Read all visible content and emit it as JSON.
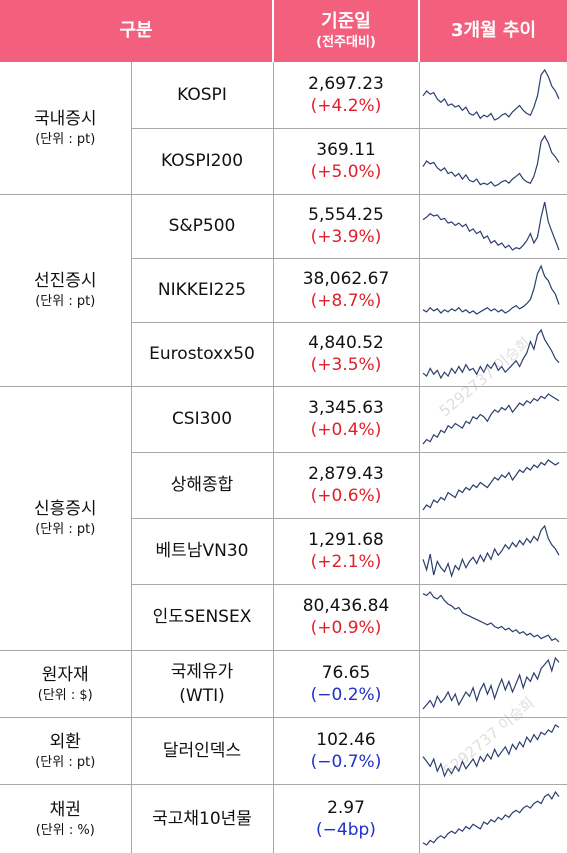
{
  "header": {
    "category": "구분",
    "base_main": "기준일",
    "base_sub": "(전주대비)",
    "trend": "3개월 추이"
  },
  "groups": [
    {
      "name": "국내증시",
      "unit": "(단위 : pt)",
      "rows": [
        {
          "item": "KOSPI",
          "value": "2,697.23",
          "change": "(+4.2%)",
          "dir": "up",
          "spark": [
            42,
            45,
            43,
            44,
            40,
            38,
            40,
            36,
            37,
            35,
            36,
            33,
            35,
            31,
            30,
            32,
            28,
            30,
            29,
            31,
            27,
            28,
            30,
            31,
            29,
            32,
            34,
            36,
            33,
            31,
            30,
            35,
            42,
            55,
            58,
            54,
            48,
            45,
            40
          ]
        },
        {
          "item": "KOSPI200",
          "value": "369.11",
          "change": "(+5.0%)",
          "dir": "up",
          "spark": [
            40,
            44,
            42,
            43,
            39,
            37,
            39,
            35,
            36,
            33,
            35,
            31,
            34,
            30,
            29,
            31,
            27,
            28,
            27,
            29,
            26,
            27,
            29,
            30,
            28,
            31,
            33,
            35,
            31,
            29,
            28,
            33,
            42,
            58,
            62,
            57,
            50,
            47,
            43
          ]
        }
      ]
    },
    {
      "name": "선진증시",
      "unit": "(단위 : pt)",
      "rows": [
        {
          "item": "S&P500",
          "value": "5,554.25",
          "change": "(+3.9%)",
          "dir": "up",
          "spark": [
            40,
            42,
            45,
            43,
            44,
            40,
            41,
            37,
            38,
            35,
            37,
            34,
            36,
            30,
            32,
            28,
            30,
            24,
            26,
            20,
            22,
            18,
            20,
            16,
            18,
            14,
            16,
            15,
            18,
            22,
            28,
            20,
            25,
            42,
            55,
            38,
            30,
            22,
            14
          ]
        },
        {
          "item": "NIKKEI225",
          "value": "38,062.67",
          "change": "(+8.7%)",
          "dir": "up",
          "spark": [
            20,
            18,
            22,
            19,
            21,
            17,
            20,
            18,
            21,
            19,
            22,
            18,
            20,
            17,
            19,
            16,
            18,
            20,
            22,
            19,
            21,
            18,
            20,
            17,
            19,
            22,
            24,
            21,
            23,
            26,
            30,
            40,
            55,
            62,
            52,
            48,
            40,
            35,
            25
          ]
        },
        {
          "item": "Eurostoxx50",
          "value": "4,840.52",
          "change": "(+3.5%)",
          "dir": "up",
          "spark": [
            15,
            12,
            20,
            14,
            18,
            10,
            16,
            12,
            20,
            15,
            22,
            16,
            24,
            18,
            20,
            14,
            22,
            16,
            24,
            20,
            26,
            18,
            22,
            16,
            20,
            24,
            28,
            22,
            30,
            36,
            48,
            40,
            55,
            60,
            50,
            44,
            38,
            30,
            26
          ]
        }
      ]
    },
    {
      "name": "신흥증시",
      "unit": "(단위 : pt)",
      "rows": [
        {
          "item": "CSI300",
          "value": "3,345.63",
          "change": "(+0.4%)",
          "dir": "up",
          "spark": [
            10,
            14,
            12,
            18,
            16,
            22,
            20,
            26,
            24,
            28,
            26,
            24,
            30,
            28,
            34,
            32,
            36,
            34,
            30,
            36,
            40,
            38,
            42,
            40,
            44,
            38,
            42,
            46,
            44,
            48,
            46,
            50,
            48,
            52,
            50,
            54,
            52,
            50,
            48
          ]
        },
        {
          "item": "상해종합",
          "value": "2,879.43",
          "change": "(+0.6%)",
          "dir": "up",
          "spark": [
            12,
            16,
            14,
            20,
            18,
            22,
            20,
            26,
            24,
            22,
            28,
            26,
            30,
            28,
            32,
            30,
            34,
            32,
            30,
            34,
            38,
            36,
            40,
            38,
            42,
            36,
            40,
            44,
            42,
            46,
            44,
            48,
            46,
            50,
            48,
            52,
            50,
            48,
            50
          ]
        },
        {
          "item": "베트남VN30",
          "value": "1,291.68",
          "change": "(+2.1%)",
          "dir": "up",
          "spark": [
            30,
            20,
            35,
            15,
            28,
            22,
            18,
            26,
            14,
            24,
            20,
            30,
            22,
            28,
            32,
            26,
            34,
            28,
            36,
            30,
            40,
            34,
            38,
            44,
            40,
            46,
            42,
            48,
            44,
            50,
            46,
            52,
            48,
            58,
            62,
            50,
            44,
            40,
            34
          ]
        },
        {
          "item": "인도SENSEX",
          "value": "80,436.84",
          "change": "(+0.9%)",
          "dir": "up",
          "spark": [
            62,
            60,
            64,
            58,
            56,
            60,
            54,
            50,
            48,
            44,
            46,
            40,
            38,
            36,
            34,
            32,
            30,
            28,
            26,
            28,
            24,
            22,
            24,
            20,
            22,
            18,
            20,
            16,
            18,
            14,
            16,
            12,
            14,
            10,
            12,
            14,
            8,
            10,
            6
          ]
        }
      ]
    },
    {
      "name": "원자재",
      "unit": "(단위 : $)",
      "rows": [
        {
          "item_lines": [
            "국제유가",
            "(WTI)"
          ],
          "value": "76.65",
          "change": "(−0.2%)",
          "dir": "down",
          "spark": [
            10,
            14,
            18,
            12,
            22,
            16,
            20,
            26,
            18,
            24,
            14,
            20,
            26,
            22,
            30,
            18,
            28,
            34,
            24,
            32,
            20,
            30,
            38,
            28,
            36,
            26,
            34,
            42,
            30,
            40,
            36,
            44,
            38,
            48,
            52,
            56,
            46,
            58,
            54
          ]
        }
      ]
    },
    {
      "name": "외환",
      "unit": "(단위 : pt)",
      "rows": [
        {
          "item": "달러인덱스",
          "value": "102.46",
          "change": "(−0.7%)",
          "dir": "down",
          "spark": [
            30,
            26,
            22,
            28,
            18,
            24,
            14,
            20,
            16,
            22,
            18,
            26,
            20,
            24,
            28,
            22,
            30,
            26,
            32,
            28,
            36,
            30,
            34,
            38,
            32,
            40,
            36,
            42,
            38,
            46,
            42,
            48,
            44,
            50,
            48,
            52,
            50,
            56,
            54
          ]
        }
      ]
    },
    {
      "name": "채권",
      "unit": "(단위 : %)",
      "rows": [
        {
          "item": "국고채10년물",
          "value": "2.97",
          "change": "(−4bp)",
          "dir": "down",
          "spark": [
            10,
            8,
            12,
            10,
            14,
            16,
            14,
            18,
            20,
            18,
            22,
            20,
            24,
            22,
            26,
            24,
            22,
            28,
            26,
            30,
            28,
            32,
            30,
            34,
            32,
            36,
            38,
            36,
            40,
            42,
            40,
            44,
            46,
            44,
            50,
            52,
            48,
            54,
            50
          ]
        }
      ]
    }
  ],
  "watermark": "5292737 이승희",
  "colors": {
    "header": "#f3607e",
    "up": "#e0202a",
    "down": "#2030c8",
    "line": "#2c3e6e"
  }
}
